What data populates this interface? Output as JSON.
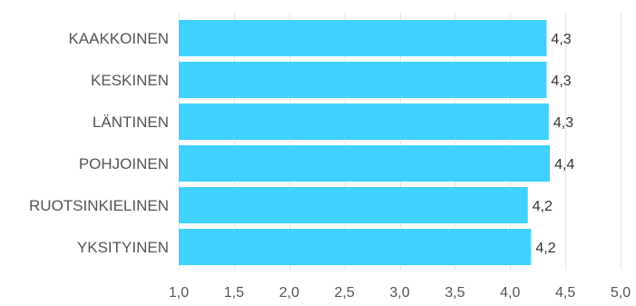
{
  "chart_data": {
    "type": "bar",
    "orientation": "horizontal",
    "categories": [
      "KAAKKOINEN",
      "KESKINEN",
      "LÄNTINEN",
      "POHJOINEN",
      "RUOTSINKIELINEN",
      "YKSITYINEN"
    ],
    "values": [
      4.33,
      4.33,
      4.35,
      4.36,
      4.16,
      4.19
    ],
    "value_labels": [
      "4,3",
      "4,3",
      "4,3",
      "4,4",
      "4,2",
      "4,2"
    ],
    "xlim": [
      1.0,
      5.0
    ],
    "x_ticks": [
      1.0,
      1.5,
      2.0,
      2.5,
      3.0,
      3.5,
      4.0,
      4.5,
      5.0
    ],
    "x_tick_labels": [
      "1,0",
      "1,5",
      "2,0",
      "2,5",
      "3,0",
      "3,5",
      "4,0",
      "4,5",
      "5,0"
    ],
    "grid": true,
    "bar_color": "#41d1ff",
    "grid_color": "#e6e6e6",
    "title": "",
    "xlabel": "",
    "ylabel": ""
  }
}
